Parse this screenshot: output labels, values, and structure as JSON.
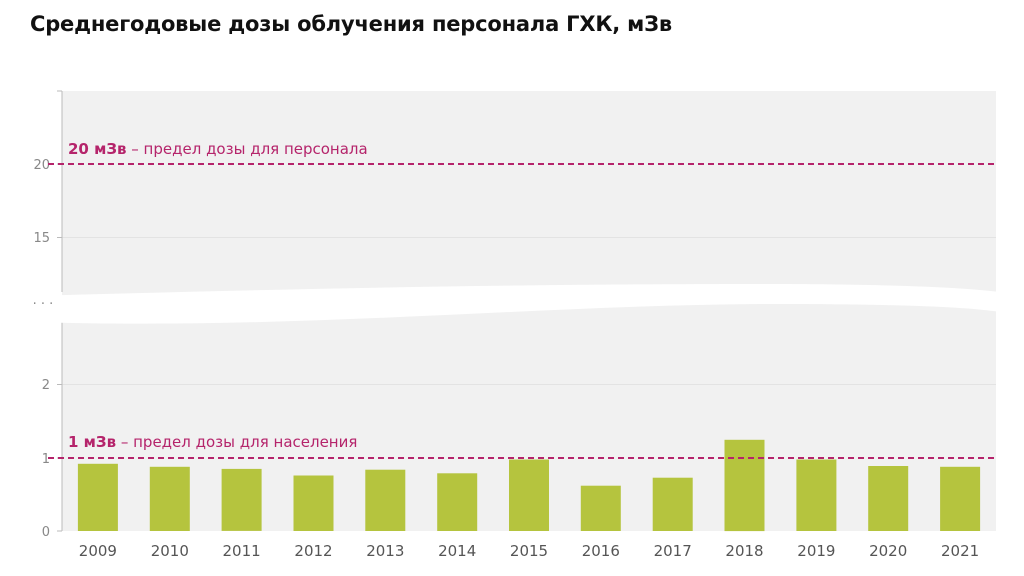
{
  "title": "Среднегодовые дозы облучения персонала ГХК, мЗв",
  "colors": {
    "bar": "#b5c43e",
    "reference": "#b5246b",
    "plot_bg": "#f1f1f1",
    "axis_text": "#888888"
  },
  "chart_data": {
    "type": "bar",
    "broken_y_axis": true,
    "grid": true,
    "categories": [
      "2009",
      "2010",
      "2011",
      "2012",
      "2013",
      "2014",
      "2015",
      "2016",
      "2017",
      "2018",
      "2019",
      "2020",
      "2021"
    ],
    "values": [
      0.92,
      0.88,
      0.85,
      0.76,
      0.84,
      0.79,
      0.98,
      0.62,
      0.73,
      1.25,
      0.98,
      0.89,
      0.88
    ],
    "yticks_lower": [
      "0",
      "1",
      "2"
    ],
    "yticks_upper": [
      "15",
      "20"
    ],
    "break_label": ". . .",
    "reference_lines": [
      {
        "value": 20,
        "label_bold": "20 мЗв",
        "label_rest": " – предел дозы для персонала"
      },
      {
        "value": 1,
        "label_bold": "1 мЗв",
        "label_rest": " – предел дозы для населения"
      }
    ]
  }
}
